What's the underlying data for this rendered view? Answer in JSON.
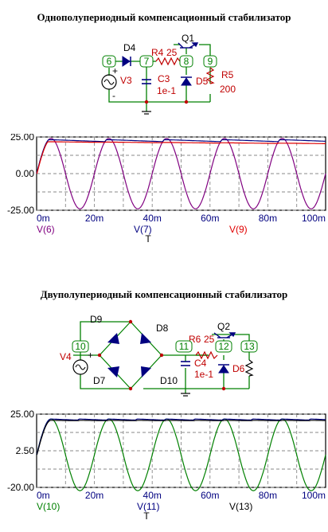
{
  "section1": {
    "title": "Однополупериодный компенсационный стабилизатор",
    "schematic": {
      "nodes": [
        "6",
        "7",
        "8",
        "9"
      ],
      "components": {
        "diode": "D4",
        "source": "V3",
        "cap": "C3",
        "cap_value": "1e-1",
        "resistor": "R4",
        "resistor_value": "25",
        "transistor": "Q1",
        "zener": "D5",
        "load": "R5",
        "load_value": "200",
        "plus": "+",
        "minus": "-"
      }
    },
    "chart_data": {
      "type": "line",
      "x_ticks": [
        "0m",
        "20m",
        "40m",
        "60m",
        "80m",
        "100m"
      ],
      "y_ticks": [
        "25.00",
        "0.00",
        "-25.00"
      ],
      "xlim": [
        0,
        100
      ],
      "ylim": [
        -25,
        25
      ],
      "xlabel": "T",
      "series": [
        {
          "name": "V(6)",
          "color": "#800080",
          "kind": "sine",
          "amplitude": 24,
          "period_ms": 20
        },
        {
          "name": "V(7)",
          "color": "#000080",
          "kind": "rectified",
          "level": 22.5
        },
        {
          "name": "V(9)",
          "color": "#e00000",
          "kind": "stabilized",
          "level": 21.5
        }
      ]
    }
  },
  "section2": {
    "title": "Двуполупериодный компенсационный стабилизатор",
    "schematic": {
      "nodes": [
        "10",
        "11",
        "12",
        "13"
      ],
      "components": {
        "d_tl": "D9",
        "d_tr": "D8",
        "d_bl": "D7",
        "d_br": "D10",
        "source": "V4",
        "cap": "C4",
        "cap_value": "1e-1",
        "resistor": "R6",
        "resistor_value": "25",
        "transistor": "Q2",
        "zener": "D6",
        "plus": "+",
        "minus": "-"
      }
    },
    "chart_data": {
      "type": "line",
      "x_ticks": [
        "0m",
        "20m",
        "40m",
        "60m",
        "80m",
        "100m"
      ],
      "y_ticks": [
        "25.00",
        "2.50",
        "-20.00"
      ],
      "xlim": [
        0,
        100
      ],
      "ylim": [
        -20,
        25
      ],
      "xlabel": "T",
      "series": [
        {
          "name": "V(10)",
          "color": "#008000",
          "kind": "sine",
          "amplitude": 22,
          "period_ms": 20
        },
        {
          "name": "V(11)",
          "color": "#000080",
          "kind": "rectified",
          "level": 23.5
        },
        {
          "name": "V(13)",
          "color": "#000000",
          "kind": "stabilized",
          "level": 22.5
        }
      ]
    }
  }
}
